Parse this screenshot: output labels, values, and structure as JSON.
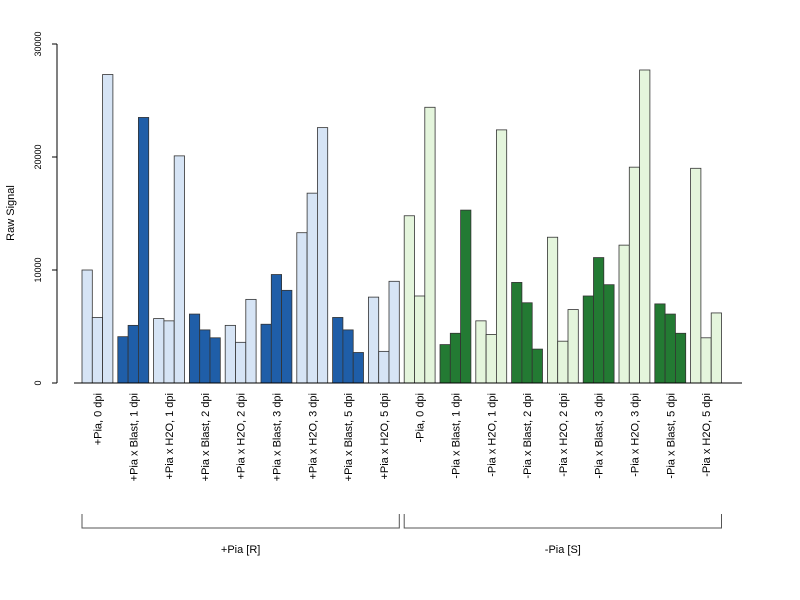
{
  "chart_data": {
    "type": "bar",
    "title": "",
    "xlabel": "",
    "ylabel": "Raw Signal",
    "ylim": [
      0,
      30000
    ],
    "yticks": [
      0,
      10000,
      20000,
      30000
    ],
    "grid": false,
    "colors": {
      "light_blue": "#d6e4f5",
      "dark_blue": "#1f5ea8",
      "light_green": "#e4f5dc",
      "dark_green": "#237a33",
      "border": "#333333"
    },
    "categories": [
      {
        "label": "+Pia, 0 dpi",
        "values": [
          10000,
          5800,
          27300
        ],
        "color": "light_blue"
      },
      {
        "label": "+Pia x Blast, 1 dpi",
        "values": [
          4100,
          5100,
          23500
        ],
        "color": "dark_blue"
      },
      {
        "label": "+Pia x H2O, 1 dpi",
        "values": [
          5700,
          5500,
          20100
        ],
        "color": "light_blue"
      },
      {
        "label": "+Pia x Blast, 2 dpi",
        "values": [
          6100,
          4700,
          4000
        ],
        "color": "dark_blue"
      },
      {
        "label": "+Pia x H2O, 2 dpi",
        "values": [
          5100,
          3600,
          7400
        ],
        "color": "light_blue"
      },
      {
        "label": "+Pia x Blast, 3 dpi",
        "values": [
          5200,
          9600,
          8200
        ],
        "color": "dark_blue"
      },
      {
        "label": "+Pia x H2O, 3 dpi",
        "values": [
          13300,
          16800,
          22600
        ],
        "color": "light_blue"
      },
      {
        "label": "+Pia x Blast, 5 dpi",
        "values": [
          5800,
          4700,
          2700
        ],
        "color": "dark_blue"
      },
      {
        "label": "+Pia x H2O, 5 dpi",
        "values": [
          7600,
          2800,
          9000
        ],
        "color": "light_blue"
      },
      {
        "label": "-Pia, 0 dpi",
        "values": [
          14800,
          7700,
          24400
        ],
        "color": "light_green"
      },
      {
        "label": "-Pia x Blast, 1 dpi",
        "values": [
          3400,
          4400,
          15300
        ],
        "color": "dark_green"
      },
      {
        "label": "-Pia x H2O, 1 dpi",
        "values": [
          5500,
          4300,
          22400
        ],
        "color": "light_green"
      },
      {
        "label": "-Pia x Blast, 2 dpi",
        "values": [
          8900,
          7100,
          3000
        ],
        "color": "dark_green"
      },
      {
        "label": "-Pia x H2O, 2 dpi",
        "values": [
          12900,
          3700,
          6500
        ],
        "color": "light_green"
      },
      {
        "label": "-Pia x Blast, 3 dpi",
        "values": [
          7700,
          11100,
          8700
        ],
        "color": "dark_green"
      },
      {
        "label": "-Pia x H2O, 3 dpi",
        "values": [
          12200,
          19100,
          27700
        ],
        "color": "light_green"
      },
      {
        "label": "-Pia x Blast, 5 dpi",
        "values": [
          7000,
          6100,
          4400
        ],
        "color": "dark_green"
      },
      {
        "label": "-Pia x H2O, 5 dpi",
        "values": [
          19000,
          4000,
          6200
        ],
        "color": "light_green"
      }
    ],
    "groups": [
      {
        "label": "+Pia [R]",
        "start": 0,
        "end": 8
      },
      {
        "label": "-Pia [S]",
        "start": 9,
        "end": 17
      }
    ]
  }
}
